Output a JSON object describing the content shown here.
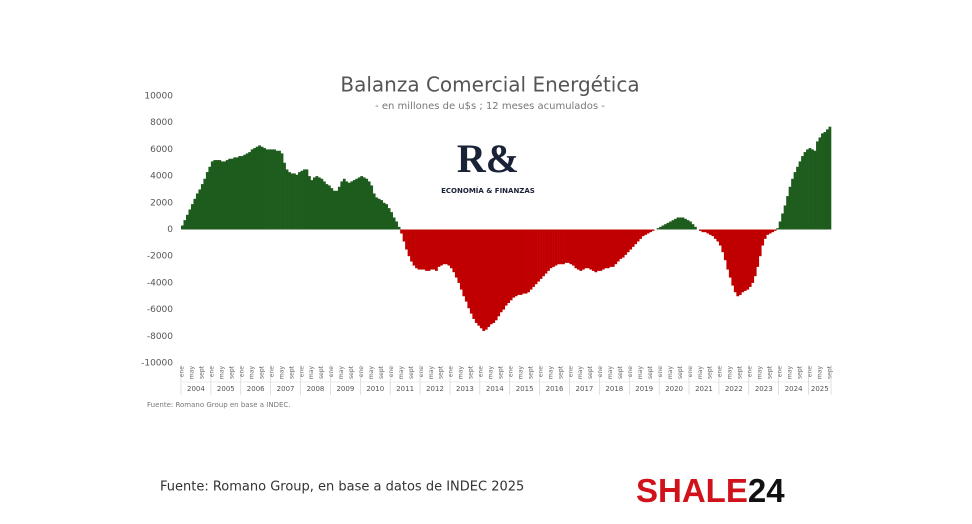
{
  "chart_data": {
    "type": "bar",
    "title": "Balanza Comercial Energética",
    "subtitle": "- en millones de u$s ; 12 meses acumulados -",
    "source_note": "Fuente: Romano Group en base a INDEC.",
    "logo": {
      "mark": "R&",
      "text": "ECONOMÍA & FINANZAS"
    },
    "positive_color": "#1d5c1d",
    "negative_color": "#c00000",
    "ylim": [
      -10000,
      10000
    ],
    "yticks": [
      -10000,
      -8000,
      -6000,
      -4000,
      -2000,
      0,
      2000,
      4000,
      6000,
      8000,
      10000
    ],
    "years": [
      "2004",
      "2005",
      "2006",
      "2007",
      "2008",
      "2009",
      "2010",
      "2011",
      "2012",
      "2013",
      "2014",
      "2015",
      "2016",
      "2017",
      "2018",
      "2019",
      "2020",
      "2021",
      "2022",
      "2023",
      "2024",
      "2025"
    ],
    "categories": [
      "ene",
      null,
      null,
      null,
      "may",
      null,
      null,
      null,
      "sept",
      null,
      null,
      null,
      "ene",
      null,
      null,
      null,
      "may",
      null,
      null,
      null,
      "sept",
      null,
      null,
      null,
      "ene",
      null,
      null,
      null,
      "may",
      null,
      null,
      null,
      "sept",
      null,
      null,
      null,
      "ene",
      null,
      null,
      null,
      "may",
      null,
      null,
      null,
      "sept",
      null,
      null,
      null,
      "ene",
      null,
      null,
      null,
      "may",
      null,
      null,
      null,
      "sept",
      null,
      null,
      null,
      "ene",
      null,
      null,
      null,
      "may",
      null,
      null,
      null,
      "sept",
      null,
      null,
      null,
      "ene",
      null,
      null,
      null,
      "may",
      null,
      null,
      null,
      "sept",
      null,
      null,
      null,
      "ene",
      null,
      null,
      null,
      "may",
      null,
      null,
      null,
      "sept",
      null,
      null,
      null,
      "ene",
      null,
      null,
      null,
      "may",
      null,
      null,
      null,
      "sept",
      null,
      null,
      null,
      "ene",
      null,
      null,
      null,
      "may",
      null,
      null,
      null,
      "sept",
      null,
      null,
      null,
      "ene",
      null,
      null,
      null,
      "may",
      null,
      null,
      null,
      "sept",
      null,
      null,
      null,
      "ene",
      null,
      null,
      null,
      "may",
      null,
      null,
      null,
      "sept",
      null,
      null,
      null,
      "ene",
      null,
      null,
      null,
      "may",
      null,
      null,
      null,
      "sept",
      null,
      null,
      null,
      "ene",
      null,
      null,
      null,
      "may",
      null,
      null,
      null,
      "sept",
      null,
      null,
      null,
      "ene",
      null,
      null,
      null,
      "may",
      null,
      null,
      null,
      "sept",
      null,
      null,
      null,
      "ene",
      null,
      null,
      null,
      "may",
      null,
      null,
      null,
      "sept",
      null,
      null,
      null,
      "ene",
      null,
      null,
      null,
      "may",
      null,
      null,
      null,
      "sept",
      null,
      null,
      null,
      "ene",
      null,
      null,
      null,
      "may",
      null,
      null,
      null,
      "sept",
      null,
      null,
      null,
      "ene",
      null,
      null,
      null,
      "may",
      null,
      null,
      null,
      "sept",
      null,
      null,
      null,
      "ene",
      null,
      null,
      null,
      "may",
      null,
      null,
      null,
      "sept",
      null,
      null,
      null,
      "ene",
      null,
      null,
      null,
      "may",
      null,
      null,
      null,
      "sept",
      null,
      null,
      null,
      "ene",
      null,
      null,
      null,
      "may",
      null,
      null,
      null,
      "sept"
    ],
    "values": [
      300,
      700,
      1100,
      1500,
      1900,
      2300,
      2700,
      3000,
      3400,
      3800,
      4300,
      4700,
      5100,
      5200,
      5200,
      5200,
      5100,
      5100,
      5200,
      5300,
      5300,
      5400,
      5400,
      5500,
      5500,
      5600,
      5700,
      5800,
      6000,
      6100,
      6200,
      6300,
      6200,
      6100,
      6000,
      6000,
      6000,
      6000,
      5900,
      5900,
      5700,
      5000,
      4500,
      4300,
      4200,
      4200,
      4100,
      4300,
      4400,
      4500,
      4500,
      4000,
      3700,
      3900,
      4000,
      3900,
      3800,
      3600,
      3400,
      3300,
      3100,
      2900,
      2900,
      3200,
      3600,
      3800,
      3600,
      3500,
      3600,
      3700,
      3800,
      3900,
      4000,
      3900,
      3800,
      3600,
      3300,
      2700,
      2400,
      2300,
      2200,
      2000,
      1900,
      1600,
      1300,
      900,
      600,
      200,
      -300,
      -900,
      -1500,
      -2000,
      -2400,
      -2700,
      -2900,
      -3000,
      -3000,
      -3000,
      -3100,
      -3100,
      -3000,
      -3000,
      -3100,
      -2800,
      -2700,
      -2600,
      -2600,
      -2700,
      -2900,
      -3200,
      -3600,
      -4000,
      -4500,
      -5000,
      -5400,
      -5900,
      -6300,
      -6700,
      -7000,
      -7200,
      -7400,
      -7600,
      -7500,
      -7300,
      -7100,
      -7000,
      -6800,
      -6500,
      -6200,
      -6000,
      -5700,
      -5500,
      -5300,
      -5100,
      -5000,
      -4900,
      -4900,
      -4800,
      -4800,
      -4700,
      -4500,
      -4300,
      -4100,
      -3900,
      -3700,
      -3500,
      -3300,
      -3100,
      -2900,
      -2800,
      -2700,
      -2600,
      -2600,
      -2600,
      -2500,
      -2500,
      -2600,
      -2700,
      -2900,
      -3000,
      -3100,
      -3000,
      -2900,
      -2900,
      -3000,
      -3100,
      -3200,
      -3100,
      -3100,
      -3000,
      -2900,
      -2900,
      -2800,
      -2800,
      -2600,
      -2400,
      -2200,
      -2100,
      -1900,
      -1700,
      -1500,
      -1300,
      -1100,
      -900,
      -700,
      -500,
      -400,
      -300,
      -200,
      -100,
      0,
      100,
      200,
      300,
      400,
      500,
      600,
      700,
      800,
      900,
      900,
      900,
      800,
      700,
      600,
      400,
      200,
      0,
      -100,
      -200,
      -200,
      -300,
      -400,
      -500,
      -700,
      -900,
      -1200,
      -1700,
      -2300,
      -3000,
      -3600,
      -4200,
      -4700,
      -5000,
      -4900,
      -4700,
      -4600,
      -4500,
      -4300,
      -4000,
      -3500,
      -2800,
      -2000,
      -1200,
      -700,
      -400,
      -300,
      -200,
      -100,
      100,
      600,
      1200,
      1800,
      2500,
      3200,
      3800,
      4300,
      4700,
      5100,
      5500,
      5800,
      6000,
      6100,
      6000,
      5900,
      6600,
      6900,
      7200,
      7300,
      7500,
      7700
    ]
  },
  "footer": {
    "source": "Fuente: Romano Group, en base a datos de INDEC 2025",
    "brand": [
      "SHALE",
      "24"
    ]
  }
}
